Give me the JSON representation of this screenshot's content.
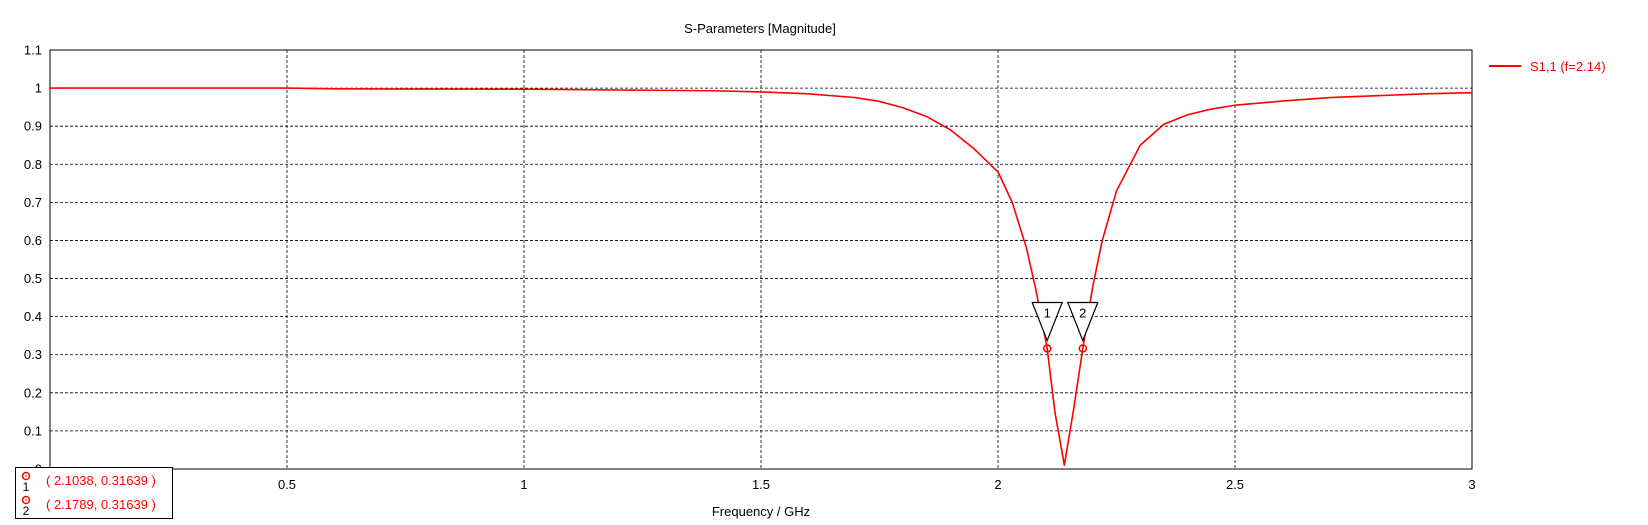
{
  "chart_data": {
    "type": "line",
    "title": "S-Parameters [Magnitude]",
    "xlabel": "Frequency / GHz",
    "ylabel": "",
    "xlim": [
      0,
      3
    ],
    "ylim": [
      0,
      1.1
    ],
    "xticks": [
      0.5,
      1,
      1.5,
      2,
      2.5,
      3
    ],
    "xtick_labels": [
      "0.5",
      "1",
      "1.5",
      "2",
      "2.5",
      "3"
    ],
    "yticks": [
      0,
      0.1,
      0.2,
      0.3,
      0.4,
      0.5,
      0.6,
      0.7,
      0.8,
      0.9,
      1,
      1.1
    ],
    "ytick_labels": [
      "0",
      "0.1",
      "0.2",
      "0.3",
      "0.4",
      "0.5",
      "0.6",
      "0.7",
      "0.8",
      "0.9",
      "1",
      "1.1"
    ],
    "grid": true,
    "legend_position": "top-right",
    "series": [
      {
        "name": "S1,1 (f=2.14)",
        "color": "#ff0000",
        "x": [
          0,
          0.5,
          0.6,
          1.0,
          1.2,
          1.4,
          1.5,
          1.6,
          1.7,
          1.75,
          1.8,
          1.85,
          1.9,
          1.95,
          2.0,
          2.03,
          2.06,
          2.08,
          2.1038,
          2.12,
          2.14,
          2.16,
          2.1789,
          2.2,
          2.22,
          2.25,
          2.3,
          2.35,
          2.4,
          2.45,
          2.5,
          2.6,
          2.7,
          2.8,
          2.9,
          3.0
        ],
        "y": [
          1.0,
          1.0,
          0.998,
          0.997,
          0.995,
          0.993,
          0.99,
          0.985,
          0.975,
          0.965,
          0.948,
          0.925,
          0.89,
          0.84,
          0.78,
          0.7,
          0.58,
          0.47,
          0.31639,
          0.15,
          0.01,
          0.16,
          0.31639,
          0.48,
          0.6,
          0.73,
          0.85,
          0.905,
          0.93,
          0.945,
          0.955,
          0.966,
          0.975,
          0.98,
          0.985,
          0.988
        ]
      }
    ],
    "markers": [
      {
        "id": "1",
        "x": 2.1038,
        "y": 0.31639,
        "readout": "( 2.1038, 0.31639 )"
      },
      {
        "id": "2",
        "x": 2.1789,
        "y": 0.31639,
        "readout": "( 2.1789, 0.31639 )"
      }
    ]
  }
}
